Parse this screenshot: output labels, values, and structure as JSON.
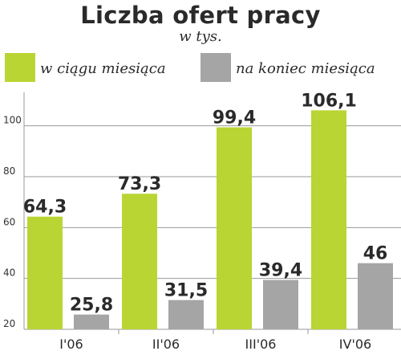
{
  "chart_data": {
    "type": "bar",
    "title": "Liczba ofert pracy",
    "subtitle": "w tys.",
    "categories": [
      "I'06",
      "II'06",
      "III'06",
      "IV'06"
    ],
    "series": [
      {
        "name": "w ciągu miesiąca",
        "values": [
          64.3,
          73.3,
          99.4,
          106.1
        ],
        "labels": [
          "64,3",
          "73,3",
          "99,4",
          "106,1"
        ],
        "color": "#b9d533"
      },
      {
        "name": "na koniec miesiąca",
        "values": [
          25.8,
          31.5,
          39.4,
          46
        ],
        "labels": [
          "25,8",
          "31,5",
          "39,4",
          "46"
        ],
        "color": "#a5a5a5"
      }
    ],
    "ylim": [
      20,
      110
    ],
    "yticks": [
      20,
      40,
      60,
      80,
      100
    ],
    "grid": true,
    "legend_position": "top"
  }
}
